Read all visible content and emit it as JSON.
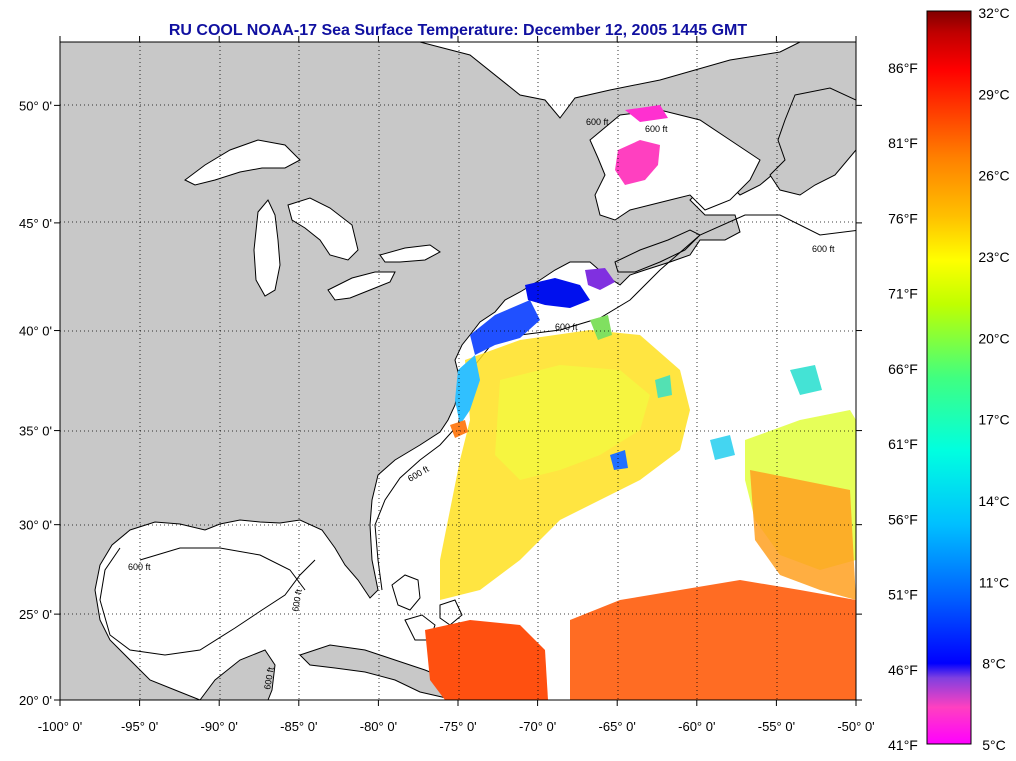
{
  "title": "RU COOL  NOAA-17  Sea Surface Temperature:  December 12, 2005 1445 GMT",
  "map": {
    "lon_range": [
      -100,
      -50
    ],
    "lat_range": [
      20,
      52.5
    ],
    "lat_ticks": [
      {
        "value": 50,
        "label": "50° 0'"
      },
      {
        "value": 45,
        "label": "45° 0'"
      },
      {
        "value": 40,
        "label": "40° 0'"
      },
      {
        "value": 35,
        "label": "35° 0'"
      },
      {
        "value": 30,
        "label": "30° 0'"
      },
      {
        "value": 25,
        "label": "25° 0'"
      },
      {
        "value": 20,
        "label": "20° 0'"
      }
    ],
    "lon_ticks": [
      {
        "value": -100,
        "label": "-100° 0'"
      },
      {
        "value": -95,
        "label": "-95° 0'"
      },
      {
        "value": -90,
        "label": "-90° 0'"
      },
      {
        "value": -85,
        "label": "-85° 0'"
      },
      {
        "value": -80,
        "label": "-80° 0'"
      },
      {
        "value": -75,
        "label": "-75° 0'"
      },
      {
        "value": -70,
        "label": "-70° 0'"
      },
      {
        "value": -65,
        "label": "-65° 0'"
      },
      {
        "value": -60,
        "label": "-60° 0'"
      },
      {
        "value": -55,
        "label": "-55° 0'"
      },
      {
        "value": -50,
        "label": "-50° 0'"
      }
    ],
    "contour_labels": [
      "600 ft",
      "600 ft",
      "600 ft",
      "600 ft",
      "600 ft",
      "600 ft",
      "600 ft",
      "600 ft"
    ],
    "colors": {
      "land": "#c8c8c8",
      "ocean": "#ffffff",
      "coast": "#000000"
    }
  },
  "colorbar": {
    "celsius": [
      "32°C",
      "29°C",
      "26°C",
      "23°C",
      "20°C",
      "17°C",
      "14°C",
      "11°C",
      "8°C",
      "5°C"
    ],
    "fahrenheit": [
      "86°F",
      "81°F",
      "76°F",
      "71°F",
      "66°F",
      "61°F",
      "56°F",
      "51°F",
      "46°F",
      "41°F"
    ],
    "colors": [
      "#ff00ff",
      "#ff40c0",
      "#8040e0",
      "#0000ff",
      "#0060ff",
      "#00c0ff",
      "#00ffe0",
      "#40ff80",
      "#c0ff00",
      "#ffff00",
      "#ffc000",
      "#ff8000",
      "#ff4000",
      "#ff0000",
      "#c00000",
      "#800000"
    ]
  }
}
